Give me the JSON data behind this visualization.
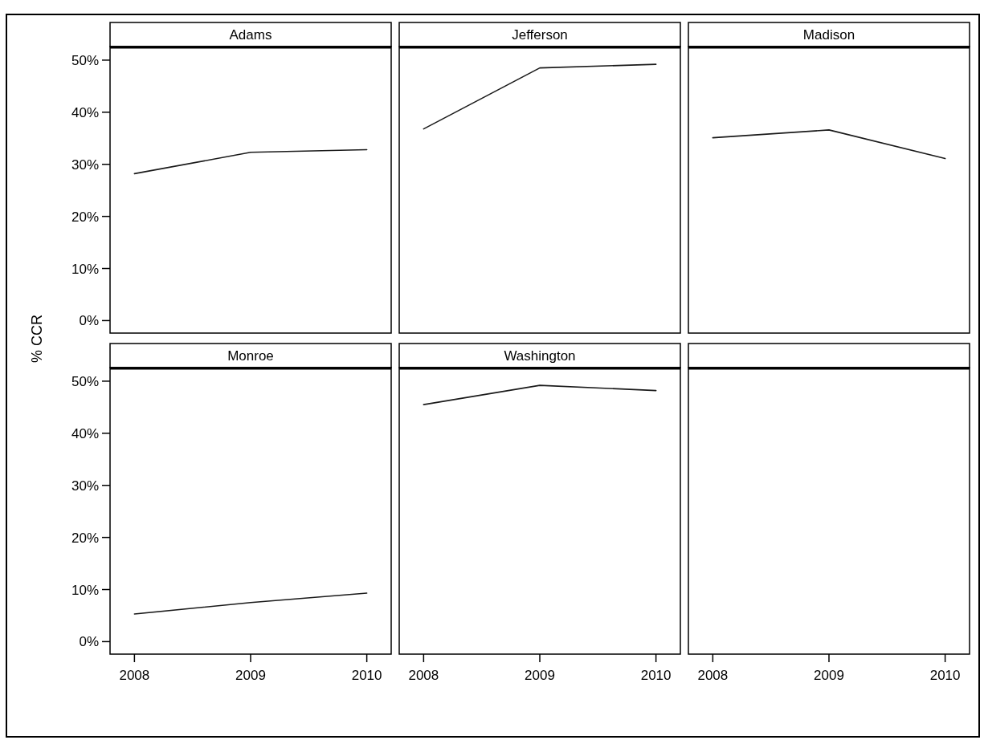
{
  "chart_data": [
    {
      "type": "line",
      "title": "Adams",
      "ylabel": "% CCR",
      "x": [
        2008,
        2009,
        2010
      ],
      "xlim": [
        2007.79,
        2010.21
      ],
      "xticks": [
        2008,
        2009,
        2010
      ],
      "ylim": [
        -2.4,
        52.3
      ],
      "yticks": [
        {
          "value": 0,
          "label": "0%"
        },
        {
          "value": 10,
          "label": "10%"
        },
        {
          "value": 20,
          "label": "20%"
        },
        {
          "value": 30,
          "label": "30%"
        },
        {
          "value": 40,
          "label": "40%"
        },
        {
          "value": 50,
          "label": "50%"
        }
      ],
      "tick_labels": "y",
      "grid": false,
      "series": [
        {
          "color": "#1a1a1a",
          "values": [
            28.2,
            32.3,
            32.8
          ]
        }
      ]
    },
    {
      "type": "line",
      "title": "Jefferson",
      "x": [
        2008,
        2009,
        2010
      ],
      "xlim": [
        2007.79,
        2010.21
      ],
      "ylim": [
        -2.4,
        52.3
      ],
      "tick_labels": false,
      "grid": false,
      "series": [
        {
          "color": "#1a1a1a",
          "values": [
            36.8,
            48.5,
            49.2
          ]
        }
      ]
    },
    {
      "type": "line",
      "title": "Madison",
      "x": [
        2008,
        2009,
        2010
      ],
      "xlim": [
        2007.79,
        2010.21
      ],
      "ylim": [
        -2.4,
        52.3
      ],
      "tick_labels": false,
      "grid": false,
      "series": [
        {
          "color": "#1a1a1a",
          "values": [
            35.1,
            36.6,
            31.1
          ]
        }
      ]
    },
    {
      "type": "line",
      "title": "Monroe",
      "x": [
        2008,
        2009,
        2010
      ],
      "xlim": [
        2007.79,
        2010.21
      ],
      "xticks": [
        2008,
        2009,
        2010
      ],
      "ylim": [
        -2.4,
        52.3
      ],
      "yticks": [
        {
          "value": 0,
          "label": "0%"
        },
        {
          "value": 10,
          "label": "10%"
        },
        {
          "value": 20,
          "label": "20%"
        },
        {
          "value": 30,
          "label": "30%"
        },
        {
          "value": 40,
          "label": "40%"
        },
        {
          "value": 50,
          "label": "50%"
        }
      ],
      "grid": false,
      "series": [
        {
          "color": "#1a1a1a",
          "values": [
            5.3,
            7.5,
            9.3
          ]
        }
      ]
    },
    {
      "type": "line",
      "title": "Washington",
      "x": [
        2008,
        2009,
        2010
      ],
      "xlim": [
        2007.79,
        2010.21
      ],
      "xticks": [
        2008,
        2009,
        2010
      ],
      "ylim": [
        -2.4,
        52.3
      ],
      "tick_labels": "x",
      "grid": false,
      "series": [
        {
          "color": "#1a1a1a",
          "values": [
            45.5,
            49.2,
            48.2
          ]
        }
      ]
    },
    {
      "type": "line",
      "xlim": [
        2007.79,
        2010.21
      ],
      "xticks": [
        2008,
        2009,
        2010
      ],
      "ylim": [
        -2.4,
        52.3
      ],
      "tick_labels": "x",
      "grid": false
    }
  ]
}
